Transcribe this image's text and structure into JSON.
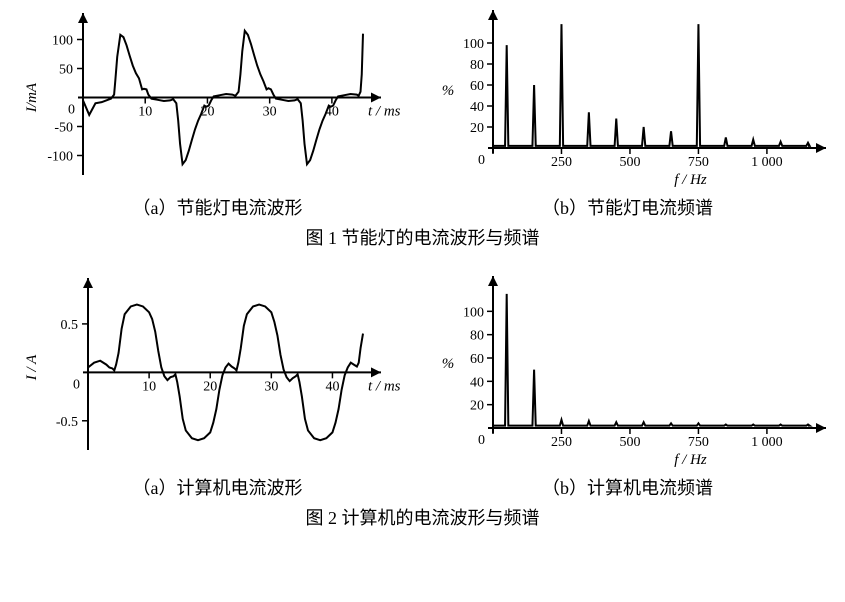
{
  "fig1": {
    "a": {
      "caption": "（a）节能灯电流波形",
      "ylabel": "I/mA",
      "xlabel": "t / ms",
      "xticks": [
        0,
        10,
        20,
        30,
        40
      ],
      "yticks": [
        -100,
        -50,
        0,
        50,
        100
      ],
      "xlim": [
        0,
        45
      ],
      "ylim": [
        -125,
        125
      ],
      "fontsize": 14,
      "stroke": "#000000",
      "waveform": [
        [
          0,
          -5
        ],
        [
          1,
          -30
        ],
        [
          2,
          -10
        ],
        [
          3,
          -8
        ],
        [
          4,
          -4
        ],
        [
          4.5,
          -2
        ],
        [
          5,
          5
        ],
        [
          5.2,
          30
        ],
        [
          5.5,
          70
        ],
        [
          6,
          108
        ],
        [
          6.5,
          104
        ],
        [
          7,
          90
        ],
        [
          7.5,
          72
        ],
        [
          8,
          55
        ],
        [
          8.5,
          42
        ],
        [
          9,
          33
        ],
        [
          9.5,
          14
        ],
        [
          9.8,
          15
        ],
        [
          10.2,
          14
        ],
        [
          10.5,
          5
        ],
        [
          11,
          -2
        ],
        [
          12,
          -4
        ],
        [
          13,
          -6
        ],
        [
          14,
          -5
        ],
        [
          14.5,
          -3
        ],
        [
          15,
          -10
        ],
        [
          15.3,
          -40
        ],
        [
          15.6,
          -80
        ],
        [
          16,
          -115
        ],
        [
          16.5,
          -108
        ],
        [
          17,
          -92
        ],
        [
          17.5,
          -73
        ],
        [
          18,
          -55
        ],
        [
          18.5,
          -40
        ],
        [
          19,
          -28
        ],
        [
          19.5,
          -14
        ],
        [
          19.8,
          -16
        ],
        [
          20.2,
          -14
        ],
        [
          20.6,
          -5
        ],
        [
          21,
          2
        ],
        [
          22,
          4
        ],
        [
          23,
          6
        ],
        [
          24,
          5
        ],
        [
          24.5,
          3
        ],
        [
          25,
          10
        ],
        [
          25.3,
          40
        ],
        [
          25.6,
          80
        ],
        [
          26,
          115
        ],
        [
          26.5,
          108
        ],
        [
          27,
          92
        ],
        [
          27.5,
          73
        ],
        [
          28,
          55
        ],
        [
          28.5,
          40
        ],
        [
          29,
          28
        ],
        [
          29.5,
          14
        ],
        [
          29.8,
          16
        ],
        [
          30.2,
          14
        ],
        [
          30.6,
          5
        ],
        [
          31,
          -2
        ],
        [
          32,
          -4
        ],
        [
          33,
          -6
        ],
        [
          34,
          -5
        ],
        [
          34.5,
          -3
        ],
        [
          35,
          -10
        ],
        [
          35.3,
          -40
        ],
        [
          35.6,
          -80
        ],
        [
          36,
          -115
        ],
        [
          36.5,
          -108
        ],
        [
          37,
          -92
        ],
        [
          37.5,
          -73
        ],
        [
          38,
          -55
        ],
        [
          38.5,
          -40
        ],
        [
          39,
          -28
        ],
        [
          39.5,
          -14
        ],
        [
          39.8,
          -16
        ],
        [
          40.2,
          -14
        ],
        [
          40.6,
          -5
        ],
        [
          41,
          2
        ],
        [
          42,
          4
        ],
        [
          43,
          6
        ],
        [
          44,
          5
        ],
        [
          44.3,
          3
        ],
        [
          44.6,
          10
        ],
        [
          44.8,
          40
        ],
        [
          45,
          110
        ]
      ]
    },
    "b": {
      "caption": "（b）节能灯电流频谱",
      "ylabel": "%",
      "xlabel": "f / Hz",
      "xticks": [
        0,
        250,
        500,
        750,
        1000
      ],
      "yticks": [
        20,
        40,
        60,
        80,
        100
      ],
      "xlim": [
        0,
        1150
      ],
      "ylim": [
        0,
        120
      ],
      "fontsize": 14,
      "stroke": "#000000",
      "peaks": [
        {
          "f": 50,
          "h": 98
        },
        {
          "f": 150,
          "h": 60
        },
        {
          "f": 250,
          "h": 118
        },
        {
          "f": 350,
          "h": 34
        },
        {
          "f": 450,
          "h": 28
        },
        {
          "f": 550,
          "h": 20
        },
        {
          "f": 650,
          "h": 16
        },
        {
          "f": 750,
          "h": 118
        },
        {
          "f": 850,
          "h": 10
        },
        {
          "f": 950,
          "h": 8
        },
        {
          "f": 1050,
          "h": 6
        },
        {
          "f": 1150,
          "h": 5
        }
      ],
      "baseline": 2
    },
    "main_caption": "图 1  节能灯的电流波形与频谱"
  },
  "fig2": {
    "a": {
      "caption": "（a）计算机电流波形",
      "ylabel": "I / A",
      "xlabel": "t / ms",
      "xticks": [
        0,
        10,
        20,
        30,
        40
      ],
      "yticks_labels": [
        "-0.5",
        "0",
        "0.5"
      ],
      "yticks_vals": [
        -0.5,
        0,
        0.5
      ],
      "xlim": [
        0,
        45
      ],
      "ylim": [
        -0.75,
        0.85
      ],
      "fontsize": 14,
      "stroke": "#000000",
      "waveform": [
        [
          0,
          0.05
        ],
        [
          1,
          0.1
        ],
        [
          2,
          0.12
        ],
        [
          3,
          0.08
        ],
        [
          3.5,
          0.05
        ],
        [
          4,
          0.04
        ],
        [
          4.3,
          0.02
        ],
        [
          4.6,
          0.08
        ],
        [
          5,
          0.2
        ],
        [
          5.5,
          0.45
        ],
        [
          6,
          0.6
        ],
        [
          7,
          0.68
        ],
        [
          8,
          0.7
        ],
        [
          9,
          0.68
        ],
        [
          10,
          0.62
        ],
        [
          10.5,
          0.55
        ],
        [
          11,
          0.42
        ],
        [
          11.5,
          0.22
        ],
        [
          12,
          0.05
        ],
        [
          12.5,
          -0.04
        ],
        [
          13,
          -0.08
        ],
        [
          13.5,
          -0.05
        ],
        [
          14,
          -0.04
        ],
        [
          14.3,
          -0.02
        ],
        [
          14.6,
          -0.1
        ],
        [
          15,
          -0.25
        ],
        [
          15.5,
          -0.48
        ],
        [
          16,
          -0.6
        ],
        [
          17,
          -0.68
        ],
        [
          18,
          -0.7
        ],
        [
          19,
          -0.68
        ],
        [
          20,
          -0.62
        ],
        [
          20.5,
          -0.52
        ],
        [
          21,
          -0.38
        ],
        [
          21.5,
          -0.18
        ],
        [
          22,
          -0.03
        ],
        [
          22.5,
          0.05
        ],
        [
          23,
          0.09
        ],
        [
          23.5,
          0.06
        ],
        [
          24,
          0.04
        ],
        [
          24.3,
          0.02
        ],
        [
          24.6,
          0.1
        ],
        [
          25,
          0.25
        ],
        [
          25.5,
          0.48
        ],
        [
          26,
          0.6
        ],
        [
          27,
          0.68
        ],
        [
          28,
          0.7
        ],
        [
          29,
          0.68
        ],
        [
          30,
          0.62
        ],
        [
          30.5,
          0.52
        ],
        [
          31,
          0.38
        ],
        [
          31.5,
          0.18
        ],
        [
          32,
          0.03
        ],
        [
          32.5,
          -0.05
        ],
        [
          33,
          -0.09
        ],
        [
          33.5,
          -0.06
        ],
        [
          34,
          -0.04
        ],
        [
          34.3,
          -0.02
        ],
        [
          34.6,
          -0.1
        ],
        [
          35,
          -0.25
        ],
        [
          35.5,
          -0.48
        ],
        [
          36,
          -0.6
        ],
        [
          37,
          -0.68
        ],
        [
          38,
          -0.7
        ],
        [
          39,
          -0.68
        ],
        [
          40,
          -0.62
        ],
        [
          40.5,
          -0.52
        ],
        [
          41,
          -0.38
        ],
        [
          41.5,
          -0.18
        ],
        [
          42,
          -0.03
        ],
        [
          42.5,
          0.05
        ],
        [
          43,
          0.1
        ],
        [
          43.5,
          0.08
        ],
        [
          44,
          0.06
        ],
        [
          44.3,
          0.1
        ],
        [
          44.6,
          0.25
        ],
        [
          45,
          0.4
        ]
      ]
    },
    "b": {
      "caption": "（b）计算机电流频谱",
      "ylabel": "%",
      "xlabel": "f / Hz",
      "xticks": [
        0,
        250,
        500,
        750,
        1000
      ],
      "yticks": [
        20,
        40,
        60,
        80,
        100
      ],
      "xlim": [
        0,
        1150
      ],
      "ylim": [
        0,
        120
      ],
      "fontsize": 14,
      "stroke": "#000000",
      "peaks": [
        {
          "f": 50,
          "h": 115
        },
        {
          "f": 150,
          "h": 50
        },
        {
          "f": 250,
          "h": 7
        },
        {
          "f": 350,
          "h": 6
        },
        {
          "f": 450,
          "h": 5
        },
        {
          "f": 550,
          "h": 5
        },
        {
          "f": 650,
          "h": 4
        },
        {
          "f": 750,
          "h": 4
        },
        {
          "f": 850,
          "h": 3
        },
        {
          "f": 950,
          "h": 3
        },
        {
          "f": 1050,
          "h": 3
        },
        {
          "f": 1150,
          "h": 3
        }
      ],
      "baseline": 2
    },
    "main_caption": "图 2  计算机的电流波形与频谱"
  }
}
